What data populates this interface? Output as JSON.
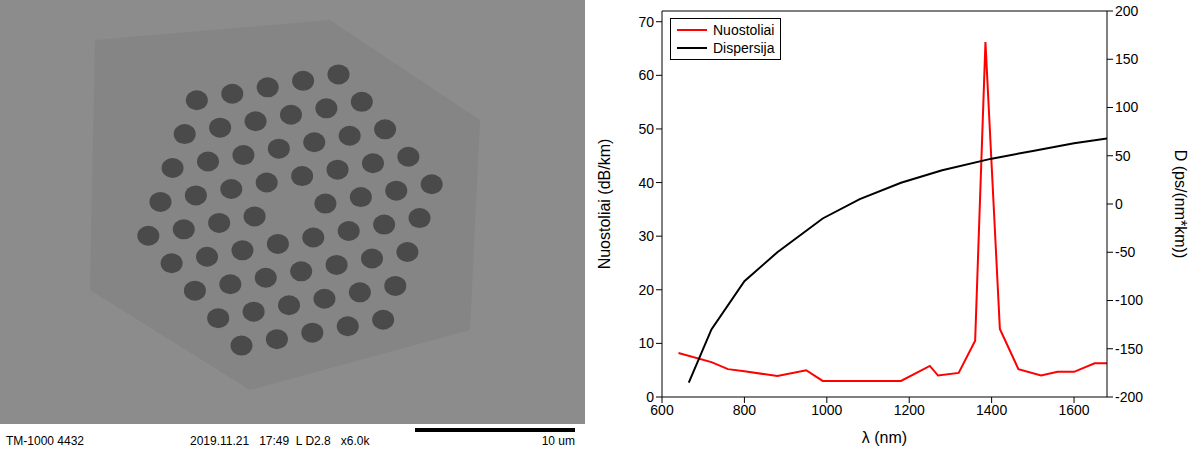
{
  "image": {
    "instrument": "TM-1000 4432",
    "info": "2019.11.21   17:49  L D2.8   x6.0k",
    "scale_bar": "10 um"
  },
  "chart_data": {
    "type": "line",
    "x_label": "λ (nm)",
    "y_label": "Nuostoliai (dB/km)",
    "y2_label": "D (ps/(nm*km))",
    "xlim": [
      600,
      1680
    ],
    "xticks": [
      600,
      800,
      1000,
      1200,
      1400,
      1600
    ],
    "ylim": [
      0,
      72
    ],
    "yticks": [
      0,
      10,
      20,
      30,
      40,
      50,
      60,
      70
    ],
    "y2lim": [
      -200,
      200
    ],
    "y2ticks": [
      -200,
      -150,
      -100,
      -50,
      0,
      50,
      100,
      150,
      200
    ],
    "grid": false,
    "legend": "upper left",
    "series": [
      {
        "name": "Nuostoliai",
        "color": "#ff0000",
        "x": [
          640,
          720,
          760,
          800,
          880,
          950,
          990,
          1050,
          1180,
          1250,
          1270,
          1320,
          1360,
          1385,
          1420,
          1465,
          1520,
          1560,
          1600,
          1650,
          1680
        ],
        "values": [
          8.2,
          6.5,
          5.2,
          4.8,
          3.9,
          5.0,
          3.0,
          3.0,
          3.0,
          5.8,
          4.0,
          4.5,
          10.5,
          66.2,
          12.7,
          5.2,
          4.0,
          4.7,
          4.7,
          6.3,
          6.3
        ]
      },
      {
        "name": "Dispersija",
        "color": "#000000",
        "axis": "y2",
        "x": [
          665,
          720,
          800,
          880,
          990,
          1080,
          1180,
          1280,
          1400,
          1500,
          1600,
          1680
        ],
        "values": [
          -185,
          -130,
          -80,
          -50,
          -15,
          5,
          22,
          35,
          47,
          55,
          63,
          68
        ]
      }
    ]
  }
}
